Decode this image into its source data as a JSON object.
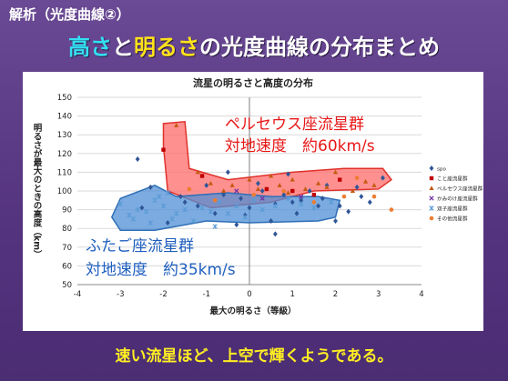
{
  "slide": {
    "section_label": "解析（光度曲線②）",
    "title": {
      "part1": "高さ",
      "part2": "と",
      "part3": "明るさ",
      "part4": "の光度曲線の分布まとめ"
    },
    "footer": "速い流星ほど、上空で輝くようである。"
  },
  "colors": {
    "title_cyan": "#33e0f2",
    "title_yellow": "#ffe21a",
    "footer_yellow": "#ffee22",
    "background": "#5b3a86"
  },
  "chart_data": {
    "type": "scatter",
    "title": "流星の明るさと高度の分布",
    "xlabel": "最大の明るさ（等級）",
    "ylabel": "明るさが最大のときの高度（km）",
    "xlim": [
      -4,
      4
    ],
    "ylim": [
      50,
      150
    ],
    "xticks": [
      -4,
      -3,
      -2,
      -1,
      0,
      1,
      2,
      3,
      4
    ],
    "yticks": [
      50,
      60,
      70,
      80,
      90,
      100,
      110,
      120,
      130,
      140,
      150
    ],
    "grid": "horizontal",
    "legend_position": "right",
    "series": [
      {
        "name": "spo",
        "marker": "diamond",
        "color": "#2f5597",
        "points": [
          [
            -2.6,
            117
          ],
          [
            -2.5,
            91
          ],
          [
            -2.3,
            102
          ],
          [
            -1.9,
            83
          ],
          [
            -1.6,
            97
          ],
          [
            -1.5,
            94
          ],
          [
            -1.2,
            92
          ],
          [
            -1.0,
            103
          ],
          [
            -0.8,
            88
          ],
          [
            -0.6,
            98
          ],
          [
            -0.5,
            110
          ],
          [
            -0.3,
            82
          ],
          [
            -0.2,
            96
          ],
          [
            0.0,
            91
          ],
          [
            0.2,
            104
          ],
          [
            0.3,
            100
          ],
          [
            0.5,
            84
          ],
          [
            0.6,
            93
          ],
          [
            0.8,
            98
          ],
          [
            1.0,
            94
          ],
          [
            1.2,
            95
          ],
          [
            1.4,
            100
          ],
          [
            1.6,
            92
          ],
          [
            1.8,
            103
          ],
          [
            2.0,
            84
          ],
          [
            2.1,
            92
          ],
          [
            2.3,
            89
          ],
          [
            2.5,
            102
          ],
          [
            2.8,
            94
          ],
          [
            3.1,
            107
          ],
          [
            0.6,
            77
          ],
          [
            1.1,
            88
          ],
          [
            -0.1,
            87
          ],
          [
            1.7,
            96
          ],
          [
            2.6,
            97
          ],
          [
            0.9,
            109
          ]
        ]
      },
      {
        "name": "こと座流星群",
        "marker": "square",
        "color": "#c00000",
        "points": [
          [
            -2.0,
            122
          ],
          [
            -1.1,
            108
          ],
          [
            0.4,
            101
          ],
          [
            1.0,
            100
          ],
          [
            1.5,
            98
          ],
          [
            2.1,
            106
          ]
        ]
      },
      {
        "name": "ペルセウス座流星群",
        "marker": "triangle",
        "color": "#c55a11",
        "points": [
          [
            -1.7,
            135
          ],
          [
            -1.2,
            110
          ],
          [
            -0.9,
            104
          ],
          [
            -0.4,
            103
          ],
          [
            0.0,
            106
          ],
          [
            0.2,
            101
          ],
          [
            0.5,
            108
          ],
          [
            0.7,
            103
          ],
          [
            1.0,
            106
          ],
          [
            1.3,
            101
          ],
          [
            1.6,
            104
          ],
          [
            2.0,
            110
          ],
          [
            2.4,
            100
          ],
          [
            2.7,
            105
          ],
          [
            -0.6,
            100
          ],
          [
            0.9,
            99
          ],
          [
            1.8,
            102
          ],
          [
            2.9,
            103
          ]
        ]
      },
      {
        "name": "かみのけ座流星群",
        "marker": "x",
        "color": "#7030a0",
        "points": [
          [
            -0.3,
            100
          ],
          [
            0.3,
            96
          ],
          [
            1.2,
            97
          ]
        ]
      },
      {
        "name": "双子座流星群",
        "marker": "cross",
        "color": "#5b9bd5",
        "points": [
          [
            -3.0,
            93
          ],
          [
            -2.8,
            87
          ],
          [
            -2.7,
            85
          ],
          [
            -2.6,
            90
          ],
          [
            -2.4,
            89
          ],
          [
            -2.2,
            95
          ],
          [
            -2.1,
            97
          ],
          [
            -2.0,
            92
          ],
          [
            -1.9,
            99
          ],
          [
            -1.7,
            88
          ],
          [
            -1.5,
            90
          ],
          [
            -1.3,
            84
          ],
          [
            -1.1,
            91
          ],
          [
            -0.9,
            89
          ],
          [
            -0.7,
            94
          ],
          [
            -0.5,
            88
          ],
          [
            -0.3,
            92
          ],
          [
            -0.1,
            86
          ],
          [
            0.1,
            95
          ],
          [
            0.3,
            90
          ],
          [
            0.6,
            92
          ],
          [
            0.9,
            96
          ],
          [
            1.2,
            93
          ],
          [
            1.5,
            91
          ],
          [
            1.9,
            94
          ],
          [
            -2.3,
            83
          ],
          [
            -1.8,
            85
          ],
          [
            -0.8,
            81
          ]
        ]
      },
      {
        "name": "その他流星群",
        "marker": "circle",
        "color": "#ed7d31",
        "points": [
          [
            -0.8,
            95
          ],
          [
            0.1,
            98
          ],
          [
            0.8,
            100
          ],
          [
            1.5,
            94
          ],
          [
            2.2,
            97
          ],
          [
            2.9,
            97
          ],
          [
            3.3,
            90
          ],
          [
            -1.4,
            101
          ],
          [
            2.5,
            107
          ]
        ]
      }
    ],
    "annotations": [
      {
        "label": "ペルセウス座流星群",
        "line2": "対地速度　約60km/s",
        "color": "#e81818"
      },
      {
        "label": "ふたご座流星群",
        "line2": "対地速度　約35km/s",
        "color": "#1f5fbf"
      }
    ],
    "regions": [
      {
        "name": "perseids-region",
        "fill": "#ff6b6b",
        "stroke": "#e0322a",
        "polygon": [
          [
            -2.0,
            136
          ],
          [
            -1.5,
            137
          ],
          [
            -1.4,
            112
          ],
          [
            -0.5,
            106
          ],
          [
            1.0,
            110
          ],
          [
            2.2,
            112
          ],
          [
            3.1,
            112
          ],
          [
            3.3,
            106
          ],
          [
            3.0,
            101
          ],
          [
            1.5,
            100
          ],
          [
            0.5,
            94
          ],
          [
            -0.9,
            91
          ],
          [
            -1.9,
            100
          ],
          [
            -2.0,
            124
          ]
        ]
      },
      {
        "name": "geminids-region",
        "fill": "#4f8fd6",
        "stroke": "#2f6fb6",
        "polygon": [
          [
            -3.2,
            86
          ],
          [
            -3.0,
            96
          ],
          [
            -2.2,
            103
          ],
          [
            -1.7,
            97
          ],
          [
            -0.5,
            99
          ],
          [
            0.5,
            97
          ],
          [
            1.6,
            97
          ],
          [
            2.1,
            95
          ],
          [
            2.0,
            86
          ],
          [
            1.6,
            84
          ],
          [
            0.0,
            83
          ],
          [
            -1.0,
            84
          ],
          [
            -2.2,
            79
          ],
          [
            -3.0,
            79
          ]
        ]
      }
    ]
  }
}
